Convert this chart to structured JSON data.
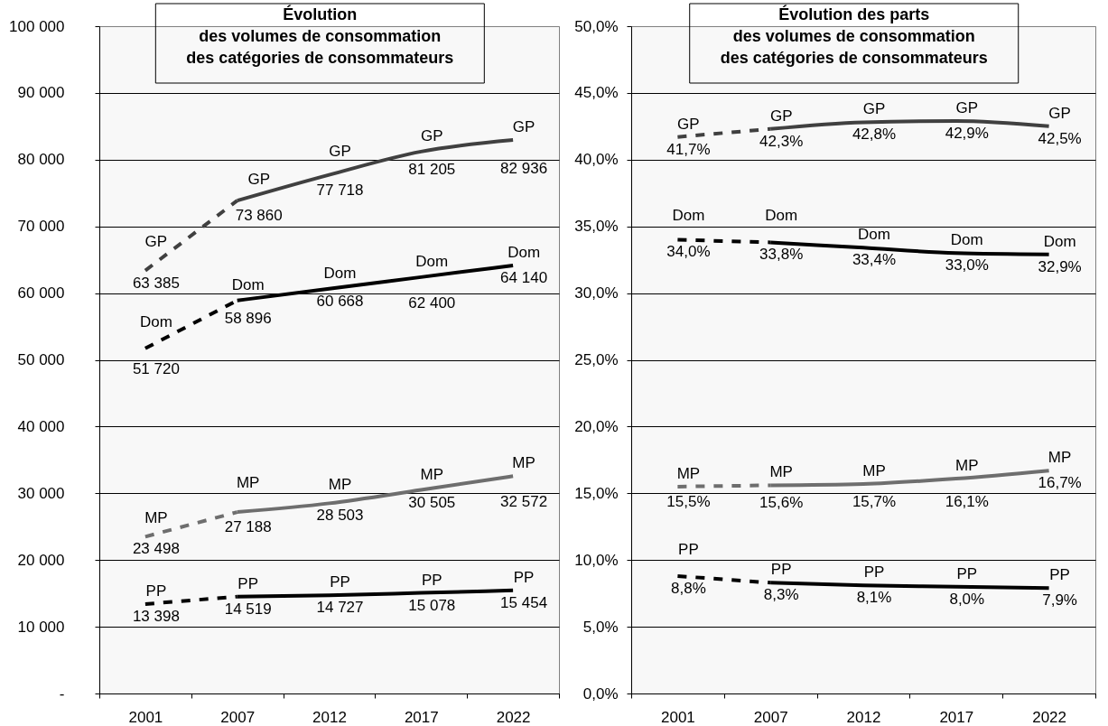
{
  "chart_data": [
    {
      "type": "line",
      "title": "Évolution\ndes volumes de consommation\ndes catégories de consommateurs",
      "categories": [
        "2001",
        "2007",
        "2012",
        "2017",
        "2022"
      ],
      "ylim": [
        0,
        100000
      ],
      "yticks": [
        {
          "value": 0,
          "label": "-"
        },
        {
          "value": 10000,
          "label": "10 000"
        },
        {
          "value": 20000,
          "label": "20 000"
        },
        {
          "value": 30000,
          "label": "30 000"
        },
        {
          "value": 40000,
          "label": "40 000"
        },
        {
          "value": 50000,
          "label": "50 000"
        },
        {
          "value": 60000,
          "label": "60 000"
        },
        {
          "value": 70000,
          "label": "70 000"
        },
        {
          "value": 80000,
          "label": "80 000"
        },
        {
          "value": 90000,
          "label": "90 000"
        },
        {
          "value": 100000,
          "label": "100 000"
        }
      ],
      "grid": "y",
      "series": [
        {
          "name": "GP",
          "color": "#404040",
          "line_style": "dashed",
          "values": [
            63385,
            73860,
            null,
            null,
            null
          ],
          "value_labels": [
            "63 385",
            null,
            null,
            null,
            null
          ]
        },
        {
          "name": "GP",
          "color": "#404040",
          "line_style": "solid",
          "values": [
            null,
            73860,
            77718,
            81205,
            82936
          ],
          "value_labels": [
            null,
            "73 860",
            "77 718",
            "81 205",
            "82 936"
          ]
        },
        {
          "name": "Dom",
          "color": "#000000",
          "line_style": "dashed",
          "values": [
            51720,
            58896,
            null,
            null,
            null
          ],
          "value_labels": [
            "51 720",
            null,
            null,
            null,
            null
          ]
        },
        {
          "name": "Dom",
          "color": "#000000",
          "line_style": "solid",
          "values": [
            null,
            58896,
            60668,
            62400,
            64140
          ],
          "value_labels": [
            null,
            "58 896",
            "60 668",
            "62 400",
            "64 140"
          ]
        },
        {
          "name": "MP",
          "color": "#6e6e6e",
          "line_style": "dashed",
          "values": [
            23498,
            27188,
            null,
            null,
            null
          ],
          "value_labels": [
            "23 498",
            null,
            null,
            null,
            null
          ]
        },
        {
          "name": "MP",
          "color": "#6e6e6e",
          "line_style": "solid",
          "values": [
            null,
            27188,
            28503,
            30505,
            32572
          ],
          "value_labels": [
            null,
            "27 188",
            "28 503",
            "30 505",
            "32 572"
          ]
        },
        {
          "name": "PP",
          "color": "#000000",
          "line_style": "dashed",
          "values": [
            13398,
            14519,
            null,
            null,
            null
          ],
          "value_labels": [
            "13 398",
            null,
            null,
            null,
            null
          ]
        },
        {
          "name": "PP",
          "color": "#000000",
          "line_style": "solid",
          "values": [
            null,
            14519,
            14727,
            15078,
            15454
          ],
          "value_labels": [
            null,
            "14 519",
            "14 727",
            "15 078",
            "15 454"
          ]
        }
      ]
    },
    {
      "type": "line",
      "title": "Évolution des parts\ndes volumes de consommation\ndes catégories de consommateurs",
      "categories": [
        "2001",
        "2007",
        "2012",
        "2017",
        "2022"
      ],
      "ylim": [
        0,
        50
      ],
      "yticks": [
        {
          "value": 0,
          "label": "0,0%"
        },
        {
          "value": 5,
          "label": "5,0%"
        },
        {
          "value": 10,
          "label": "10,0%"
        },
        {
          "value": 15,
          "label": "15,0%"
        },
        {
          "value": 20,
          "label": "20,0%"
        },
        {
          "value": 25,
          "label": "25,0%"
        },
        {
          "value": 30,
          "label": "30,0%"
        },
        {
          "value": 35,
          "label": "35,0%"
        },
        {
          "value": 40,
          "label": "40,0%"
        },
        {
          "value": 45,
          "label": "45,0%"
        },
        {
          "value": 50,
          "label": "50,0%"
        }
      ],
      "grid": "y",
      "series": [
        {
          "name": "GP",
          "color": "#404040",
          "line_style": "dashed",
          "values": [
            41.7,
            42.3,
            null,
            null,
            null
          ],
          "value_labels": [
            "41,7%",
            null,
            null,
            null,
            null
          ]
        },
        {
          "name": "GP",
          "color": "#404040",
          "line_style": "solid",
          "values": [
            null,
            42.3,
            42.8,
            42.9,
            42.5
          ],
          "value_labels": [
            null,
            "42,3%",
            "42,8%",
            "42,9%",
            "42,5%"
          ]
        },
        {
          "name": "Dom",
          "color": "#000000",
          "line_style": "dashed",
          "values": [
            34.0,
            33.8,
            null,
            null,
            null
          ],
          "value_labels": [
            "34,0%",
            null,
            null,
            null,
            null
          ]
        },
        {
          "name": "Dom",
          "color": "#000000",
          "line_style": "solid",
          "values": [
            null,
            33.8,
            33.4,
            33.0,
            32.9
          ],
          "value_labels": [
            null,
            "33,8%",
            "33,4%",
            "33,0%",
            "32,9%"
          ]
        },
        {
          "name": "MP",
          "color": "#6e6e6e",
          "line_style": "dashed",
          "values": [
            15.5,
            15.6,
            null,
            null,
            null
          ],
          "value_labels": [
            "15,5%",
            null,
            null,
            null,
            null
          ]
        },
        {
          "name": "MP",
          "color": "#6e6e6e",
          "line_style": "solid",
          "values": [
            null,
            15.6,
            15.7,
            16.1,
            16.7
          ],
          "value_labels": [
            null,
            "15,6%",
            "15,7%",
            "16,1%",
            "16,7%"
          ]
        },
        {
          "name": "PP",
          "color": "#000000",
          "line_style": "dashed",
          "values": [
            8.8,
            8.3,
            null,
            null,
            null
          ],
          "value_labels": [
            "8,8%",
            null,
            null,
            null,
            null
          ]
        },
        {
          "name": "PP",
          "color": "#000000",
          "line_style": "solid",
          "values": [
            null,
            8.3,
            8.1,
            8.0,
            7.9
          ],
          "value_labels": [
            null,
            "8,3%",
            "8,1%",
            "8,0%",
            "7,9%"
          ]
        }
      ]
    }
  ]
}
